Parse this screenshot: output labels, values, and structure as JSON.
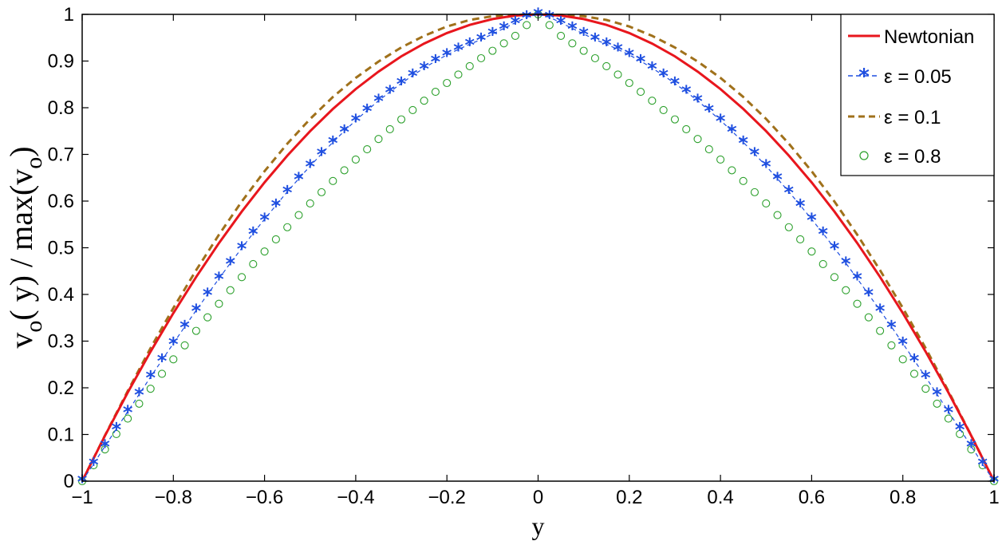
{
  "chart_data": {
    "type": "line",
    "xlabel": "y",
    "ylabel_parts": {
      "v": "v",
      "o1": "o",
      "mid": "( y) / max(v",
      "o2": "o",
      "close": ")"
    },
    "xlim": [
      -1,
      1
    ],
    "ylim": [
      0,
      1
    ],
    "x_ticks": [
      -1,
      -0.8,
      -0.6,
      -0.4,
      -0.2,
      0,
      0.2,
      0.4,
      0.6,
      0.8,
      1
    ],
    "x_tick_labels": [
      "−1",
      "−0.8",
      "−0.6",
      "−0.4",
      "−0.2",
      "0",
      "0.2",
      "0.4",
      "0.6",
      "0.8",
      "1"
    ],
    "y_ticks": [
      0,
      0.1,
      0.2,
      0.3,
      0.4,
      0.5,
      0.6,
      0.7,
      0.8,
      0.9,
      1
    ],
    "y_tick_labels": [
      "0",
      "0.1",
      "0.2",
      "0.3",
      "0.4",
      "0.5",
      "0.6",
      "0.7",
      "0.8",
      "0.9",
      "1"
    ],
    "grid": false,
    "legend_position": "top-right",
    "series": [
      {
        "name": "Newtonian",
        "style": "solid",
        "color": "#e8161d",
        "x": [
          -1,
          -0.95,
          -0.9,
          -0.85,
          -0.8,
          -0.75,
          -0.7,
          -0.65,
          -0.6,
          -0.55,
          -0.5,
          -0.45,
          -0.4,
          -0.35,
          -0.3,
          -0.25,
          -0.2,
          -0.15,
          -0.1,
          -0.05,
          0,
          0.05,
          0.1,
          0.15,
          0.2,
          0.25,
          0.3,
          0.35,
          0.4,
          0.45,
          0.5,
          0.55,
          0.6,
          0.65,
          0.7,
          0.75,
          0.8,
          0.85,
          0.9,
          0.95,
          1
        ],
        "y": [
          0,
          0.0975,
          0.19,
          0.2775,
          0.36,
          0.4375,
          0.51,
          0.5775,
          0.64,
          0.6975,
          0.75,
          0.7975,
          0.84,
          0.8775,
          0.91,
          0.9375,
          0.96,
          0.9775,
          0.99,
          0.9975,
          1,
          0.9975,
          0.99,
          0.9775,
          0.96,
          0.9375,
          0.91,
          0.8775,
          0.84,
          0.7975,
          0.75,
          0.6975,
          0.64,
          0.5775,
          0.51,
          0.4375,
          0.36,
          0.2775,
          0.19,
          0.0975,
          0
        ]
      },
      {
        "name": "ε = 0.05",
        "style": "star-dashed",
        "color": "#1f4fe0",
        "x": [
          -1,
          -0.975,
          -0.95,
          -0.925,
          -0.9,
          -0.875,
          -0.85,
          -0.825,
          -0.8,
          -0.775,
          -0.75,
          -0.725,
          -0.7,
          -0.675,
          -0.65,
          -0.625,
          -0.6,
          -0.575,
          -0.55,
          -0.525,
          -0.5,
          -0.475,
          -0.45,
          -0.425,
          -0.4,
          -0.375,
          -0.35,
          -0.325,
          -0.3,
          -0.275,
          -0.25,
          -0.225,
          -0.2,
          -0.175,
          -0.15,
          -0.125,
          -0.1,
          -0.075,
          -0.05,
          -0.025,
          0,
          0.025,
          0.05,
          0.075,
          0.1,
          0.125,
          0.15,
          0.175,
          0.2,
          0.225,
          0.25,
          0.275,
          0.3,
          0.325,
          0.35,
          0.375,
          0.4,
          0.425,
          0.45,
          0.475,
          0.5,
          0.525,
          0.55,
          0.575,
          0.6,
          0.625,
          0.65,
          0.675,
          0.7,
          0.725,
          0.75,
          0.775,
          0.8,
          0.825,
          0.85,
          0.875,
          0.9,
          0.925,
          0.95,
          0.975,
          1
        ],
        "y": [
          0,
          0.037,
          0.075,
          0.112,
          0.149,
          0.186,
          0.223,
          0.259,
          0.295,
          0.331,
          0.366,
          0.4,
          0.434,
          0.467,
          0.499,
          0.531,
          0.561,
          0.591,
          0.62,
          0.648,
          0.675,
          0.701,
          0.726,
          0.75,
          0.773,
          0.794,
          0.815,
          0.834,
          0.852,
          0.869,
          0.885,
          0.9,
          0.913,
          0.925,
          0.936,
          0.946,
          0.958,
          0.97,
          0.982,
          0.994,
          1,
          0.994,
          0.982,
          0.97,
          0.958,
          0.946,
          0.936,
          0.925,
          0.913,
          0.9,
          0.885,
          0.869,
          0.852,
          0.834,
          0.815,
          0.794,
          0.773,
          0.75,
          0.726,
          0.701,
          0.675,
          0.648,
          0.62,
          0.591,
          0.561,
          0.531,
          0.499,
          0.467,
          0.434,
          0.4,
          0.366,
          0.331,
          0.295,
          0.259,
          0.223,
          0.186,
          0.149,
          0.112,
          0.075,
          0.037,
          0
        ]
      },
      {
        "name": "ε = 0.1",
        "style": "dashed",
        "color": "#a0711b",
        "x": [
          -1,
          -0.95,
          -0.9,
          -0.85,
          -0.8,
          -0.75,
          -0.7,
          -0.65,
          -0.6,
          -0.55,
          -0.5,
          -0.45,
          -0.4,
          -0.35,
          -0.3,
          -0.25,
          -0.2,
          -0.15,
          -0.1,
          -0.05,
          0,
          0.05,
          0.1,
          0.15,
          0.2,
          0.25,
          0.3,
          0.35,
          0.4,
          0.45,
          0.5,
          0.55,
          0.6,
          0.65,
          0.7,
          0.75,
          0.8,
          0.85,
          0.9,
          0.95,
          1
        ],
        "y": [
          0,
          0.098,
          0.193,
          0.285,
          0.371,
          0.452,
          0.528,
          0.599,
          0.664,
          0.723,
          0.776,
          0.823,
          0.864,
          0.899,
          0.929,
          0.954,
          0.974,
          0.988,
          0.996,
          0.999,
          1,
          0.999,
          0.996,
          0.988,
          0.974,
          0.954,
          0.929,
          0.899,
          0.864,
          0.823,
          0.776,
          0.723,
          0.664,
          0.599,
          0.528,
          0.452,
          0.371,
          0.285,
          0.193,
          0.098,
          0
        ]
      },
      {
        "name": "ε = 0.8",
        "style": "circle",
        "color": "#2ca02c",
        "x": [
          -1,
          -0.975,
          -0.95,
          -0.925,
          -0.9,
          -0.875,
          -0.85,
          -0.825,
          -0.8,
          -0.775,
          -0.75,
          -0.725,
          -0.7,
          -0.675,
          -0.65,
          -0.625,
          -0.6,
          -0.575,
          -0.55,
          -0.525,
          -0.5,
          -0.475,
          -0.45,
          -0.425,
          -0.4,
          -0.375,
          -0.35,
          -0.325,
          -0.3,
          -0.275,
          -0.25,
          -0.225,
          -0.2,
          -0.175,
          -0.15,
          -0.125,
          -0.1,
          -0.075,
          -0.05,
          -0.025,
          0,
          0.025,
          0.05,
          0.075,
          0.1,
          0.125,
          0.15,
          0.175,
          0.2,
          0.225,
          0.25,
          0.275,
          0.3,
          0.325,
          0.35,
          0.375,
          0.4,
          0.425,
          0.45,
          0.475,
          0.5,
          0.525,
          0.55,
          0.575,
          0.6,
          0.625,
          0.65,
          0.675,
          0.7,
          0.725,
          0.75,
          0.775,
          0.8,
          0.825,
          0.85,
          0.875,
          0.9,
          0.925,
          0.95,
          0.975,
          1
        ],
        "y": [
          0,
          0.034,
          0.068,
          0.101,
          0.134,
          0.166,
          0.198,
          0.23,
          0.261,
          0.291,
          0.322,
          0.351,
          0.38,
          0.409,
          0.437,
          0.465,
          0.492,
          0.518,
          0.544,
          0.57,
          0.595,
          0.619,
          0.643,
          0.666,
          0.689,
          0.711,
          0.733,
          0.754,
          0.775,
          0.795,
          0.815,
          0.834,
          0.853,
          0.871,
          0.889,
          0.906,
          0.922,
          0.938,
          0.954,
          0.977,
          1,
          0.977,
          0.954,
          0.938,
          0.922,
          0.906,
          0.889,
          0.871,
          0.853,
          0.834,
          0.815,
          0.795,
          0.775,
          0.754,
          0.733,
          0.711,
          0.689,
          0.666,
          0.643,
          0.619,
          0.595,
          0.57,
          0.544,
          0.518,
          0.492,
          0.465,
          0.437,
          0.409,
          0.38,
          0.351,
          0.322,
          0.291,
          0.261,
          0.23,
          0.198,
          0.166,
          0.134,
          0.101,
          0.068,
          0.034,
          0
        ]
      }
    ]
  }
}
